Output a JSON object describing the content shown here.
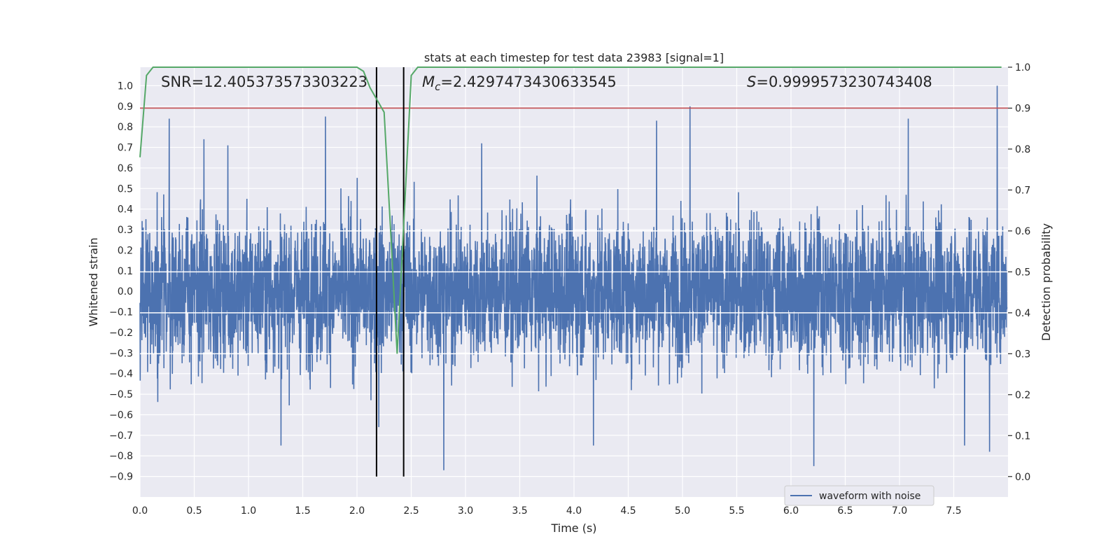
{
  "chart_data": {
    "type": "line",
    "title": "stats at each timestep for test data 23983 [signal=1]",
    "xlabel": "Time (s)",
    "ylabel_left": "Whitened strain",
    "ylabel_right": "Detection probability",
    "xlim": [
      0.0,
      8.0
    ],
    "ylim_left": [
      -1.0,
      1.09
    ],
    "ylim_right": [
      -0.05,
      1.0
    ],
    "x_ticks": [
      "0.0",
      "0.5",
      "1.0",
      "1.5",
      "2.0",
      "2.5",
      "3.0",
      "3.5",
      "4.0",
      "4.5",
      "5.0",
      "5.5",
      "6.0",
      "6.5",
      "7.0",
      "7.5"
    ],
    "y_ticks_left": [
      "-0.9",
      "-0.8",
      "-0.7",
      "-0.6",
      "-0.5",
      "-0.4",
      "-0.3",
      "-0.2",
      "-0.1",
      "0.0",
      "0.1",
      "0.2",
      "0.3",
      "0.4",
      "0.5",
      "0.6",
      "0.7",
      "0.8",
      "0.9",
      "1.0"
    ],
    "y_ticks_right": [
      "0.0",
      "0.1",
      "0.2",
      "0.3",
      "0.4",
      "0.5",
      "0.6",
      "0.7",
      "0.8",
      "0.9",
      "1.0"
    ],
    "grid": true,
    "annotations": {
      "snr": "SNR=12.405373573303223",
      "mc_symbol": "M",
      "mc_sub": "c",
      "mc_value": "=2.4297473430633545",
      "s_symbol": "S",
      "s_value": "=0.9999573230743408"
    },
    "legend": {
      "label": "waveform with noise",
      "placement": "lower-right"
    },
    "threshold_line": {
      "y_right": 0.9,
      "color": "#c44e52"
    },
    "event_lines_x": [
      2.18,
      2.43
    ],
    "waveform": {
      "color": "#4c72b0",
      "x_range": [
        0.0,
        7.99
      ],
      "samples": 4096,
      "typical_abs": 0.45,
      "peaks": [
        {
          "x": 0.27,
          "y": 0.84
        },
        {
          "x": 0.59,
          "y": 0.74
        },
        {
          "x": 0.81,
          "y": 0.71
        },
        {
          "x": 1.3,
          "y": -0.75
        },
        {
          "x": 1.71,
          "y": 0.85
        },
        {
          "x": 2.2,
          "y": -0.66
        },
        {
          "x": 2.8,
          "y": -0.87
        },
        {
          "x": 3.15,
          "y": 0.72
        },
        {
          "x": 4.18,
          "y": -0.75
        },
        {
          "x": 4.76,
          "y": 0.83
        },
        {
          "x": 5.07,
          "y": 0.9
        },
        {
          "x": 6.21,
          "y": -0.85
        },
        {
          "x": 7.08,
          "y": 0.84
        },
        {
          "x": 7.6,
          "y": -0.75
        },
        {
          "x": 7.83,
          "y": -0.78
        },
        {
          "x": 7.9,
          "y": 1.0
        }
      ]
    },
    "probability": {
      "color": "#55a868",
      "x": [
        0.0,
        0.06,
        0.12,
        0.25,
        0.5,
        1.0,
        1.5,
        2.0,
        2.06,
        2.12,
        2.25,
        2.31,
        2.37,
        2.42,
        2.5,
        2.56,
        2.62,
        3.0,
        4.0,
        5.0,
        6.0,
        7.0,
        7.94
      ],
      "y": [
        0.78,
        0.98,
        1.0,
        1.0,
        1.0,
        1.0,
        1.0,
        1.0,
        0.99,
        0.95,
        0.89,
        0.6,
        0.3,
        0.56,
        0.98,
        1.0,
        1.0,
        1.0,
        1.0,
        1.0,
        1.0,
        1.0,
        1.0
      ]
    }
  }
}
